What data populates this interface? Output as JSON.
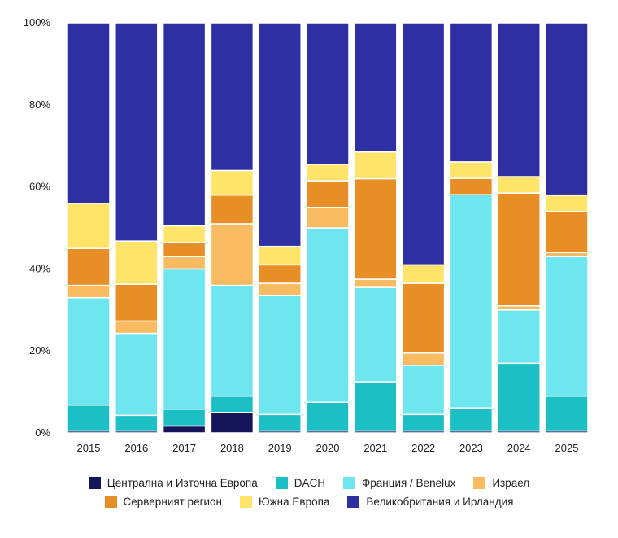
{
  "chart_data": {
    "type": "bar",
    "stacked": true,
    "normalized": true,
    "categories": [
      "2015",
      "2016",
      "2017",
      "2018",
      "2019",
      "2020",
      "2021",
      "2022",
      "2023",
      "2024",
      "2025"
    ],
    "ylim": [
      0,
      100
    ],
    "yticks": [
      "0%",
      "20%",
      "40%",
      "60%",
      "80%",
      "100%"
    ],
    "grid": false,
    "legend_position": "bottom",
    "series": [
      {
        "name": "Централна и Източна Европа",
        "color": "#16155a",
        "values": [
          0.5,
          0.5,
          1.7,
          5.0,
          0.5,
          0.5,
          0.5,
          0.5,
          0.5,
          0.5,
          0.5
        ]
      },
      {
        "name": "DACH",
        "color": "#1bbfc4",
        "values": [
          6.3,
          3.8,
          4.1,
          4.0,
          4.0,
          7.0,
          12.0,
          4.0,
          5.6,
          16.5,
          8.5
        ]
      },
      {
        "name": "Франция / Benelux",
        "color": "#6ee6f0",
        "values": [
          26.2,
          20.0,
          34.2,
          27.0,
          29.0,
          42.5,
          23.0,
          12.0,
          52.0,
          13.0,
          34.0
        ]
      },
      {
        "name": "Израел",
        "color": "#f8bb61",
        "values": [
          3.0,
          3.0,
          3.0,
          15.0,
          3.0,
          5.0,
          2.0,
          3.0,
          0.0,
          1.0,
          1.0
        ]
      },
      {
        "name": "Серверният регион",
        "color": "#e88e27",
        "values": [
          9.0,
          9.0,
          3.5,
          7.0,
          4.5,
          6.5,
          24.5,
          17.0,
          4.0,
          27.5,
          10.0
        ]
      },
      {
        "name": "Южна Европа",
        "color": "#fee56a",
        "values": [
          11.0,
          10.5,
          4.0,
          6.0,
          4.5,
          4.0,
          6.5,
          4.5,
          4.0,
          4.0,
          4.0
        ]
      },
      {
        "name": "Великобритания и Ирландия",
        "color": "#2e2fa3",
        "values": [
          44.0,
          53.2,
          49.5,
          36.0,
          54.5,
          34.5,
          31.5,
          59.0,
          33.9,
          37.5,
          42.0
        ]
      }
    ]
  },
  "legend": {
    "row1": [
      "Централна и Източна Европа",
      "DACH",
      "Франция / Benelux",
      "Израел"
    ],
    "row2": [
      "Серверният регион",
      "Южна Европа",
      "Великобритания и Ирландия"
    ]
  }
}
